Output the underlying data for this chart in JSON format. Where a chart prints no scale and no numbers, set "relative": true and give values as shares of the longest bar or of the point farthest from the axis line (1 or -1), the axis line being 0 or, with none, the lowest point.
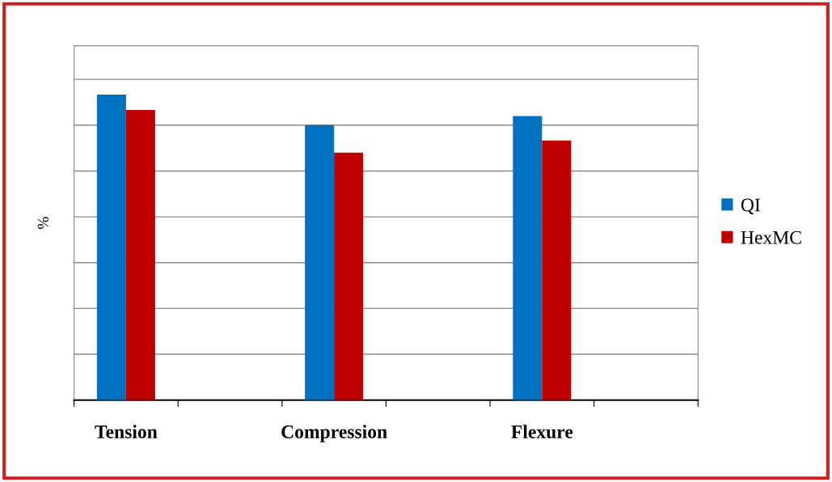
{
  "chart_data": {
    "type": "bar",
    "relative": true,
    "ylabel": "%",
    "categories": [
      "Tension",
      null,
      "Compression",
      null,
      "Flexure",
      null
    ],
    "series": [
      {
        "name": "QI",
        "color": "#0070c0",
        "values": [
          1,
          null,
          0.9,
          null,
          0.93,
          null
        ]
      },
      {
        "name": "HexMC",
        "color": "#c00000",
        "values": [
          0.95,
          null,
          0.81,
          null,
          0.85,
          null
        ]
      }
    ],
    "grid": "y",
    "legend": "right"
  }
}
